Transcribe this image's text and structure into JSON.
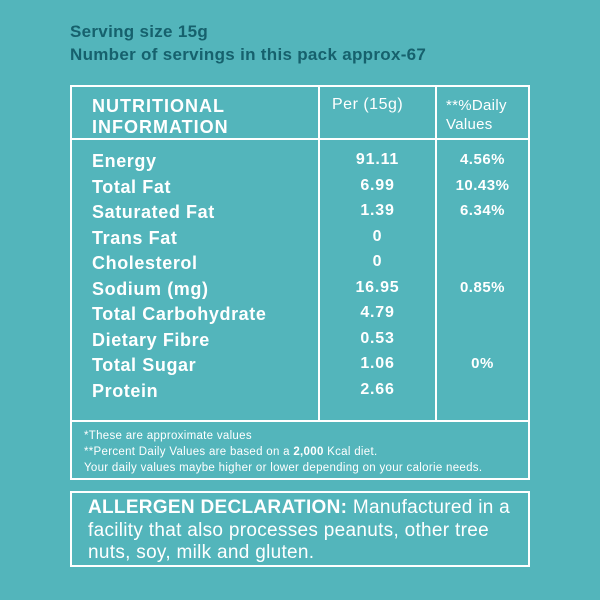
{
  "colors": {
    "background": "#53b5bb",
    "heading_text": "#16616d",
    "panel_text": "#ffffff",
    "border": "#ffffff"
  },
  "top": {
    "serving_size": "Serving size 15g",
    "servings_count": "Number of servings in this pack approx-67"
  },
  "table": {
    "headers": [
      "NUTRITIONAL INFORMATION",
      "Per (15g)",
      "**%Daily Values"
    ],
    "rows": [
      {
        "label": "Energy",
        "per": "91.11",
        "daily": "4.56%"
      },
      {
        "label": "Total Fat",
        "per": "6.99",
        "daily": "10.43%"
      },
      {
        "label": "Saturated Fat",
        "per": "1.39",
        "daily": "6.34%"
      },
      {
        "label": "Trans Fat",
        "per": "0",
        "daily": ""
      },
      {
        "label": "Cholesterol",
        "per": "0",
        "daily": ""
      },
      {
        "label": "Sodium (mg)",
        "per": "16.95",
        "daily": "0.85%"
      },
      {
        "label": "Total Carbohydrate",
        "per": "4.79",
        "daily": ""
      },
      {
        "label": "Dietary Fibre",
        "per": "0.53",
        "daily": ""
      },
      {
        "label": "Total Sugar",
        "per": "1.06",
        "daily": "0%"
      },
      {
        "label": "Protein",
        "per": "2.66",
        "daily": ""
      }
    ]
  },
  "footnotes": {
    "line1": "*These are approximate values",
    "line2_prefix": "**Percent Daily Values are based on a ",
    "line2_bold": "2,000",
    "line2_suffix": " Kcal diet.",
    "line3": "Your daily values maybe higher or lower depending on your calorie needs."
  },
  "allergen": {
    "label": "ALLERGEN DECLARATION:",
    "text": "Manufactured in a facility that also processes peanuts, other tree nuts, soy, milk and gluten."
  }
}
